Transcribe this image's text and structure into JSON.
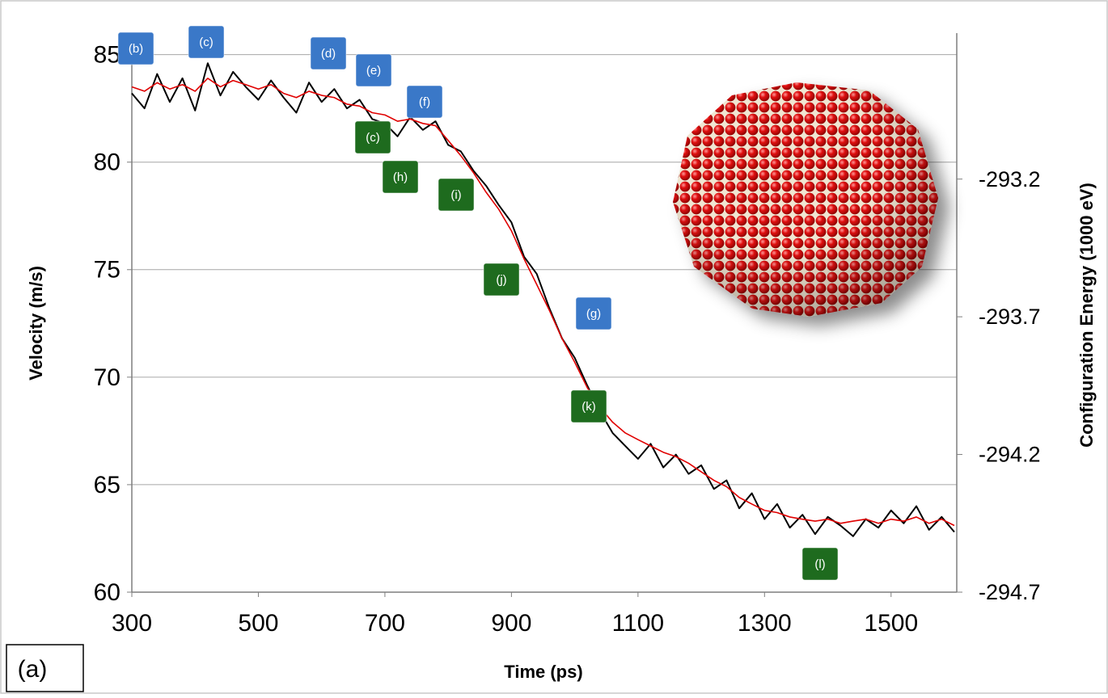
{
  "chart_data": {
    "type": "line",
    "xlabel": "Time (ps)",
    "ylabel": "Velocity (m/s)",
    "y2label": "Configuration Energy (1000 eV)",
    "panel_label": "(a)",
    "xlim": [
      300,
      1600
    ],
    "xticks": [
      300,
      500,
      700,
      900,
      1100,
      1300,
      1500
    ],
    "ylim": [
      60,
      86
    ],
    "yticks": [
      60,
      65,
      70,
      75,
      80,
      85
    ],
    "y2lim": [
      -294.7,
      -292.67
    ],
    "y2ticks": [
      -293.2,
      -293.7,
      -294.2,
      -294.7
    ],
    "grid": true,
    "x": [
      300,
      320,
      340,
      360,
      380,
      400,
      420,
      440,
      460,
      480,
      500,
      520,
      540,
      560,
      580,
      600,
      620,
      640,
      660,
      680,
      700,
      720,
      740,
      760,
      780,
      800,
      820,
      840,
      860,
      880,
      900,
      920,
      940,
      960,
      980,
      1000,
      1020,
      1040,
      1060,
      1080,
      1100,
      1120,
      1140,
      1160,
      1180,
      1200,
      1220,
      1240,
      1260,
      1280,
      1300,
      1320,
      1340,
      1360,
      1380,
      1400,
      1420,
      1440,
      1460,
      1480,
      1500,
      1520,
      1540,
      1560,
      1580,
      1600
    ],
    "series": [
      {
        "color": "#000000",
        "values": [
          83.2,
          82.5,
          84.1,
          82.8,
          83.9,
          82.4,
          84.6,
          83.1,
          84.2,
          83.5,
          82.9,
          83.8,
          83.0,
          82.3,
          83.7,
          82.8,
          83.4,
          82.5,
          82.9,
          82.0,
          81.8,
          81.2,
          82.1,
          81.5,
          81.9,
          80.8,
          80.5,
          79.6,
          78.9,
          78.0,
          77.2,
          75.6,
          74.8,
          73.2,
          71.8,
          70.9,
          69.6,
          68.4,
          67.4,
          66.8,
          66.2,
          66.9,
          65.8,
          66.4,
          65.5,
          65.9,
          64.8,
          65.2,
          63.9,
          64.6,
          63.4,
          64.1,
          63.0,
          63.6,
          62.7,
          63.5,
          63.1,
          62.6,
          63.4,
          63.0,
          63.8,
          63.2,
          64.0,
          62.9,
          63.5,
          62.8
        ]
      },
      {
        "color": "#e00000",
        "axis": "y2",
        "values": [
          -292.865,
          -292.881,
          -292.85,
          -292.873,
          -292.857,
          -292.881,
          -292.834,
          -292.865,
          -292.842,
          -292.857,
          -292.873,
          -292.857,
          -292.889,
          -292.904,
          -292.881,
          -292.896,
          -292.904,
          -292.928,
          -292.935,
          -292.959,
          -292.967,
          -292.99,
          -292.982,
          -292.998,
          -293.006,
          -293.06,
          -293.115,
          -293.177,
          -293.248,
          -293.31,
          -293.388,
          -293.49,
          -293.583,
          -293.677,
          -293.779,
          -293.865,
          -293.958,
          -294.029,
          -294.083,
          -294.122,
          -294.146,
          -294.169,
          -294.192,
          -294.208,
          -294.232,
          -294.263,
          -294.294,
          -294.317,
          -294.356,
          -294.38,
          -294.403,
          -294.411,
          -294.427,
          -294.435,
          -294.442,
          -294.435,
          -294.45,
          -294.442,
          -294.435,
          -294.45,
          -294.435,
          -294.442,
          -294.427,
          -294.45,
          -294.435,
          -294.458
        ]
      }
    ],
    "annotations": [
      {
        "text": "(b)",
        "color": "#3a78c8"
      },
      {
        "text": "(c)",
        "color": "#3a78c8"
      },
      {
        "text": "(d)",
        "color": "#3a78c8"
      },
      {
        "text": "(e)",
        "color": "#3a78c8"
      },
      {
        "text": "(f)",
        "color": "#3a78c8"
      },
      {
        "text": "(c)",
        "color": "#1e6b1e"
      },
      {
        "text": "(h)",
        "color": "#1e6b1e"
      },
      {
        "text": "(i)",
        "color": "#1e6b1e"
      },
      {
        "text": "(j)",
        "color": "#1e6b1e"
      },
      {
        "text": "(g)",
        "color": "#3a78c8"
      },
      {
        "text": "(k)",
        "color": "#1e6b1e"
      },
      {
        "text": "(l)",
        "color": "#1e6b1e"
      }
    ]
  }
}
